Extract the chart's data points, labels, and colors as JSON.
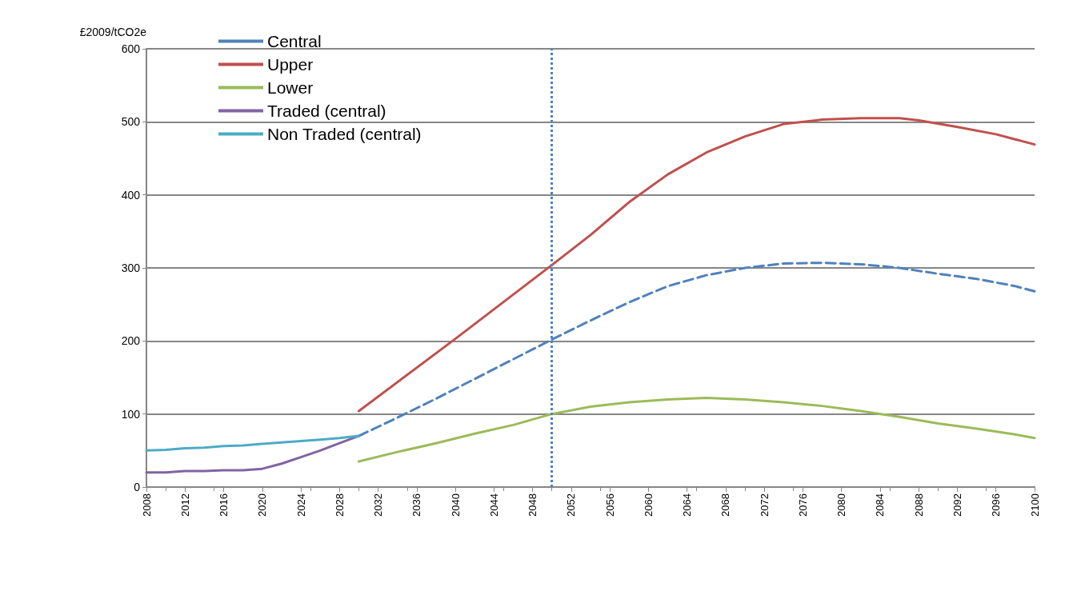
{
  "chart_data": {
    "type": "line",
    "ylabel": "£2009/tCO2e",
    "xlim": [
      2008,
      2100
    ],
    "xticks": [
      2008,
      2012,
      2016,
      2020,
      2024,
      2028,
      2032,
      2036,
      2040,
      2044,
      2048,
      2052,
      2056,
      2060,
      2064,
      2068,
      2072,
      2076,
      2080,
      2084,
      2088,
      2092,
      2096,
      2100
    ],
    "ylim": [
      0,
      600
    ],
    "yticks": [
      0,
      100,
      200,
      300,
      400,
      500,
      600
    ],
    "grid": "y",
    "legend": "top left",
    "marker": "none",
    "series": [
      {
        "name": "Central",
        "color": "#4f81bd",
        "line_style": "dashed",
        "x": [
          2030,
          2034,
          2038,
          2042,
          2046,
          2050,
          2054,
          2058,
          2062,
          2066,
          2070,
          2074,
          2078,
          2082,
          2086,
          2090,
          2094,
          2098,
          2100
        ],
        "values": [
          70,
          95,
          121,
          148,
          175,
          202,
          228,
          253,
          275,
          290,
          300,
          306,
          307,
          305,
          300,
          292,
          285,
          275,
          268
        ]
      },
      {
        "name": "Upper",
        "color": "#c0504d",
        "line_style": "solid",
        "x": [
          2030,
          2040,
          2050,
          2054,
          2058,
          2062,
          2066,
          2070,
          2074,
          2078,
          2082,
          2086,
          2088,
          2092,
          2096,
          2100
        ],
        "values": [
          104,
          203,
          304,
          345,
          390,
          428,
          458,
          480,
          497,
          503,
          505,
          505,
          502,
          493,
          483,
          469
        ]
      },
      {
        "name": "Lower",
        "color": "#9bbb59",
        "line_style": "solid",
        "x": [
          2030,
          2034,
          2038,
          2042,
          2046,
          2050,
          2054,
          2058,
          2062,
          2066,
          2070,
          2074,
          2078,
          2082,
          2086,
          2090,
          2094,
          2098,
          2100
        ],
        "values": [
          35,
          48,
          60,
          73,
          85,
          100,
          110,
          116,
          120,
          122,
          120,
          116,
          111,
          104,
          96,
          87,
          80,
          72,
          67
        ]
      },
      {
        "name": "Traded (central)",
        "color": "#8064a2",
        "line_style": "solid",
        "x": [
          2008,
          2010,
          2012,
          2014,
          2016,
          2018,
          2020,
          2022,
          2024,
          2026,
          2028,
          2030
        ],
        "values": [
          20,
          20,
          22,
          22,
          23,
          23,
          25,
          32,
          41,
          50,
          60,
          70
        ]
      },
      {
        "name": "Non Traded (central)",
        "color": "#4bacc6",
        "line_style": "solid",
        "x": [
          2008,
          2010,
          2012,
          2014,
          2016,
          2018,
          2020,
          2022,
          2024,
          2026,
          2028,
          2030
        ],
        "values": [
          50,
          51,
          53,
          54,
          56,
          57,
          59,
          61,
          63,
          65,
          67,
          70
        ]
      }
    ],
    "ref_lines": [
      {
        "axis": "x",
        "value": 2050,
        "color": "#4f81bd",
        "line_style": "dotted"
      }
    ]
  }
}
